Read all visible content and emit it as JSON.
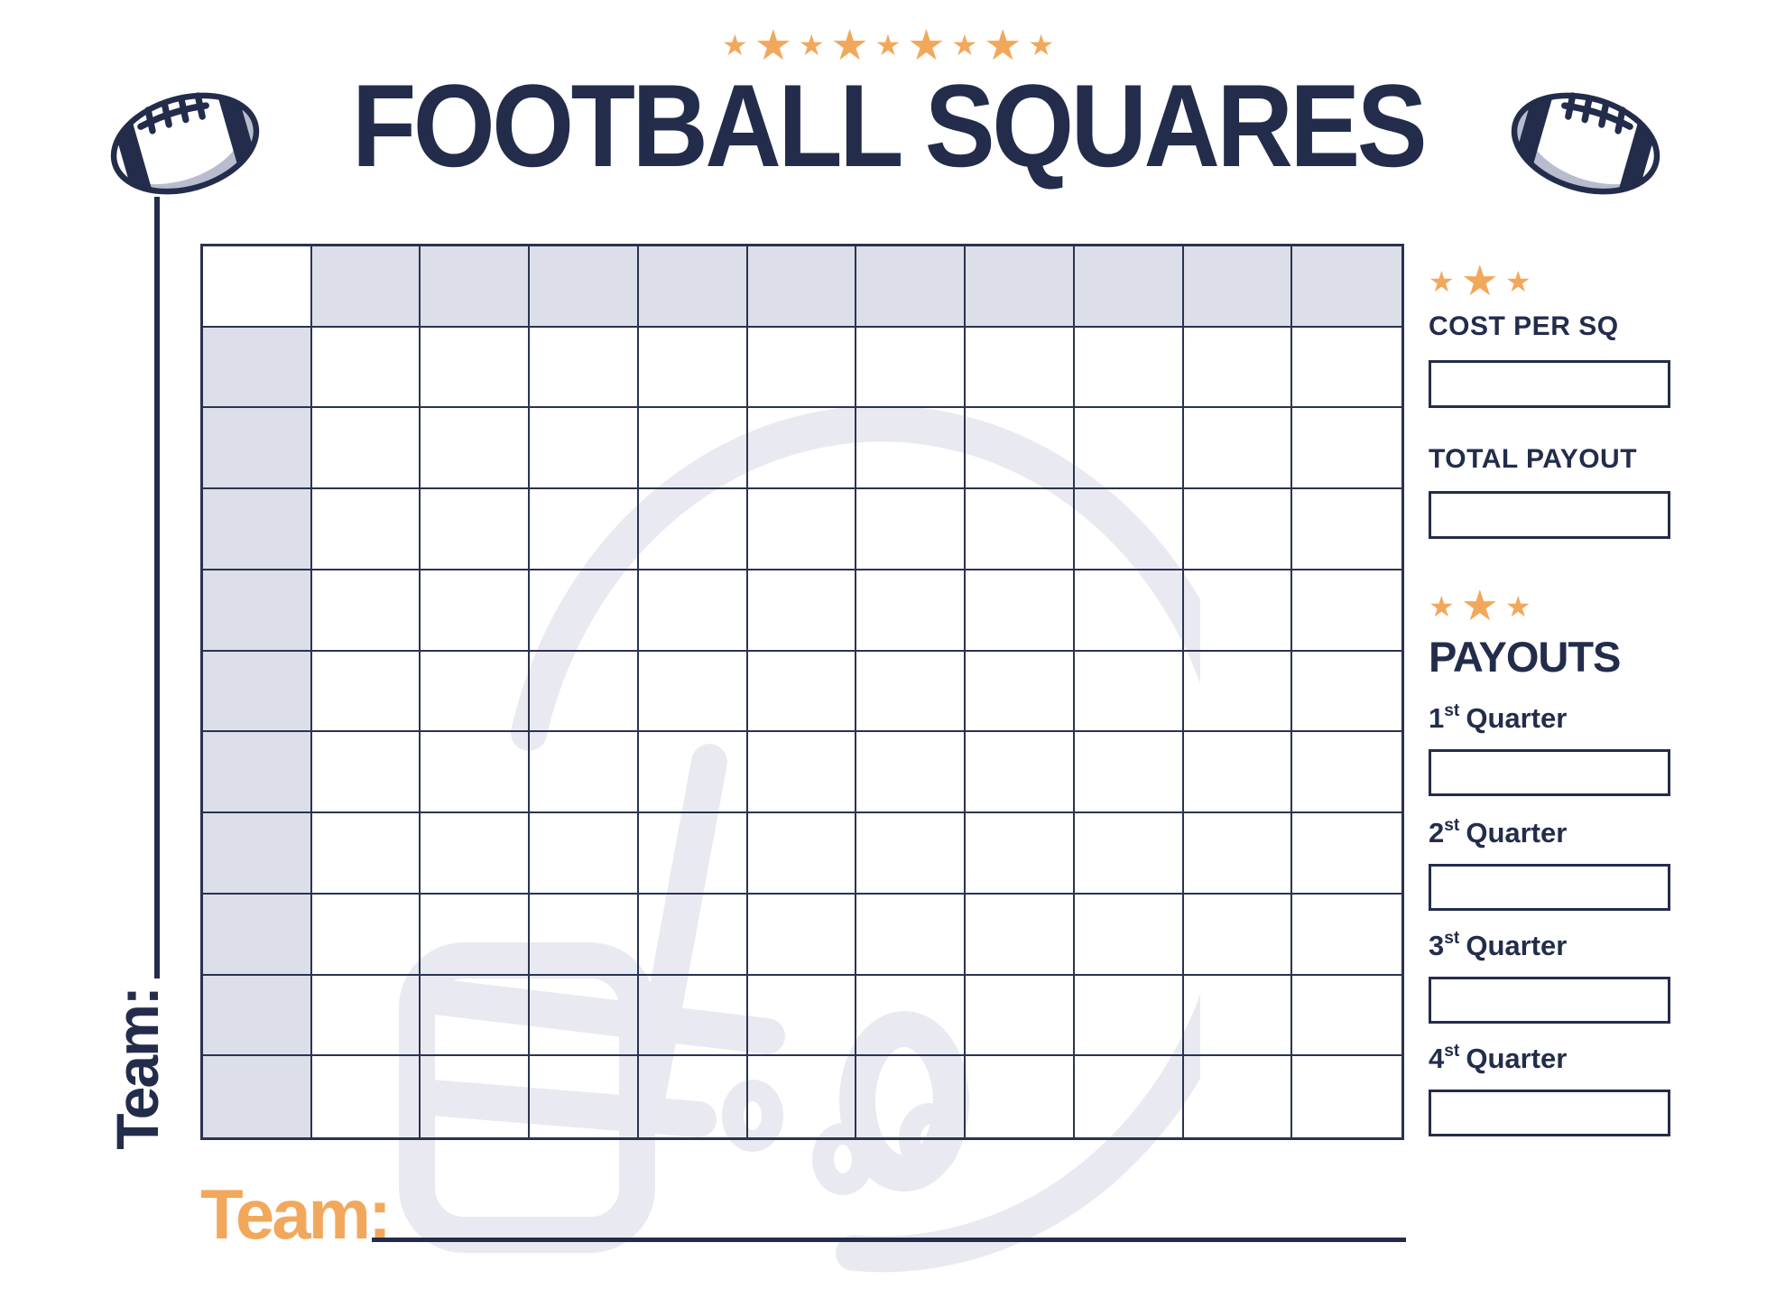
{
  "page": {
    "title": "FOOTBALL SQUARES"
  },
  "header": {
    "stars": [
      "s",
      "l",
      "s",
      "l",
      "s",
      "l",
      "s",
      "l",
      "s"
    ]
  },
  "team": {
    "side_label": "Team:",
    "bottom_label": "Team:"
  },
  "grid": {
    "rows": 11,
    "cols": 11
  },
  "sidebar": {
    "stars_top": [
      "s",
      "l",
      "s"
    ],
    "stars_payouts": [
      "s",
      "l",
      "s"
    ],
    "cost_per_sq": {
      "label": "COST PER SQ",
      "value": ""
    },
    "total_payout": {
      "label": "TOTAL PAYOUT",
      "value": ""
    },
    "payouts": {
      "title": "PAYOUTS",
      "quarters": [
        {
          "num": "1",
          "suffix": "st",
          "word": "Quarter",
          "value": ""
        },
        {
          "num": "2",
          "suffix": "st",
          "word": "Quarter",
          "value": ""
        },
        {
          "num": "3",
          "suffix": "st",
          "word": "Quarter",
          "value": ""
        },
        {
          "num": "4",
          "suffix": "st",
          "word": "Quarter",
          "value": ""
        }
      ]
    }
  },
  "colors": {
    "navy": "#232D4B",
    "grid_line": "#2A3350",
    "orange": "#F2A85C",
    "cell_shade": "#DCDEE9",
    "watermark": "#E9EAF1",
    "football_shadow": "#B9BCCF"
  }
}
